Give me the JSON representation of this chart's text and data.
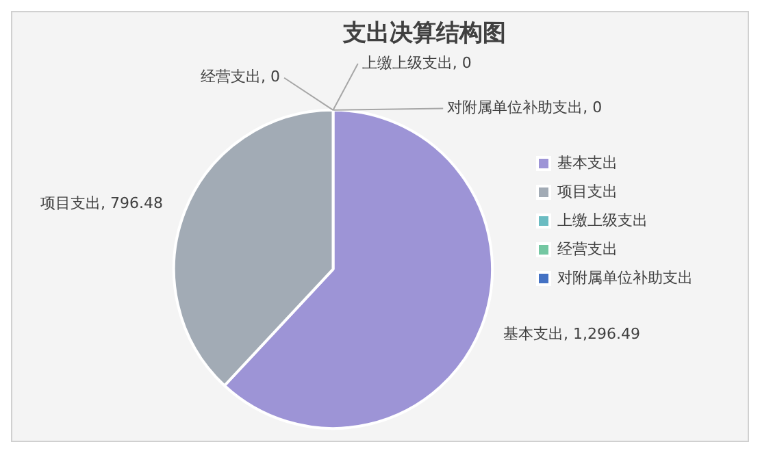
{
  "chart_data": {
    "type": "pie",
    "title": "支出决算结构图",
    "categories": [
      "基本支出",
      "项目支出",
      "上缴上级支出",
      "经营支出",
      "对附属单位补助支出"
    ],
    "values": [
      1296.49,
      796.48,
      0,
      0,
      0
    ],
    "value_labels": [
      "基本支出, 1,296.49",
      "项目支出, 796.48",
      "上缴上级支出, 0",
      "经营支出, 0",
      "对附属单位补助支出, 0"
    ],
    "colors": [
      "#9d94d6",
      "#a2abb5",
      "#6bbcc2",
      "#74c7a2",
      "#4472c4"
    ],
    "legend": "right"
  }
}
